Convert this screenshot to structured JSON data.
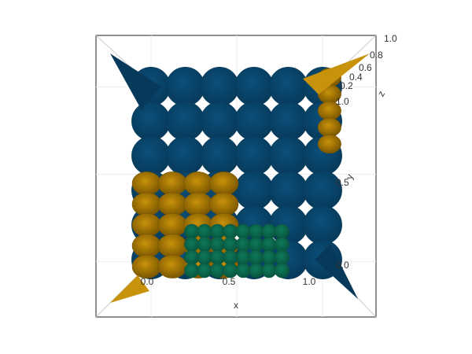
{
  "chart_data": {
    "type": "surface",
    "view": "3d-top",
    "xlabel": "x",
    "ylabel": "y",
    "zlabel": "z",
    "xticks": [
      "0.0",
      "0.5",
      "1.0"
    ],
    "yticks": [
      "0.0",
      "0.5",
      "1.0"
    ],
    "zticks": [
      "0.2",
      "0.4",
      "0.6",
      "0.8",
      "1.0"
    ],
    "xlim": [
      0,
      1
    ],
    "ylim": [
      0,
      1
    ],
    "zlim": [
      0,
      1
    ],
    "grid": true,
    "series": [
      {
        "color": "#0b4f7a",
        "shade": "#073a5a",
        "region": {
          "x": [
            0,
            1
          ],
          "y": [
            0,
            1
          ]
        },
        "cells": [
          6,
          6
        ]
      },
      {
        "color": "#c8920a",
        "shade": "#7a5600",
        "region": {
          "x": [
            0,
            0.5
          ],
          "y": [
            0,
            0.5
          ]
        },
        "cells": [
          4,
          5
        ]
      },
      {
        "color": "#0f7a5a",
        "shade": "#08553e",
        "region": {
          "x": [
            0.25,
            0.75
          ],
          "y": [
            0,
            0.25
          ]
        },
        "cells": [
          8,
          4
        ]
      },
      {
        "color": "#c8920a",
        "shade": "#7a5600",
        "region": {
          "x": [
            0.9,
            1
          ],
          "y": [
            0.6,
            1
          ]
        },
        "cells": [
          1,
          5
        ]
      }
    ]
  }
}
